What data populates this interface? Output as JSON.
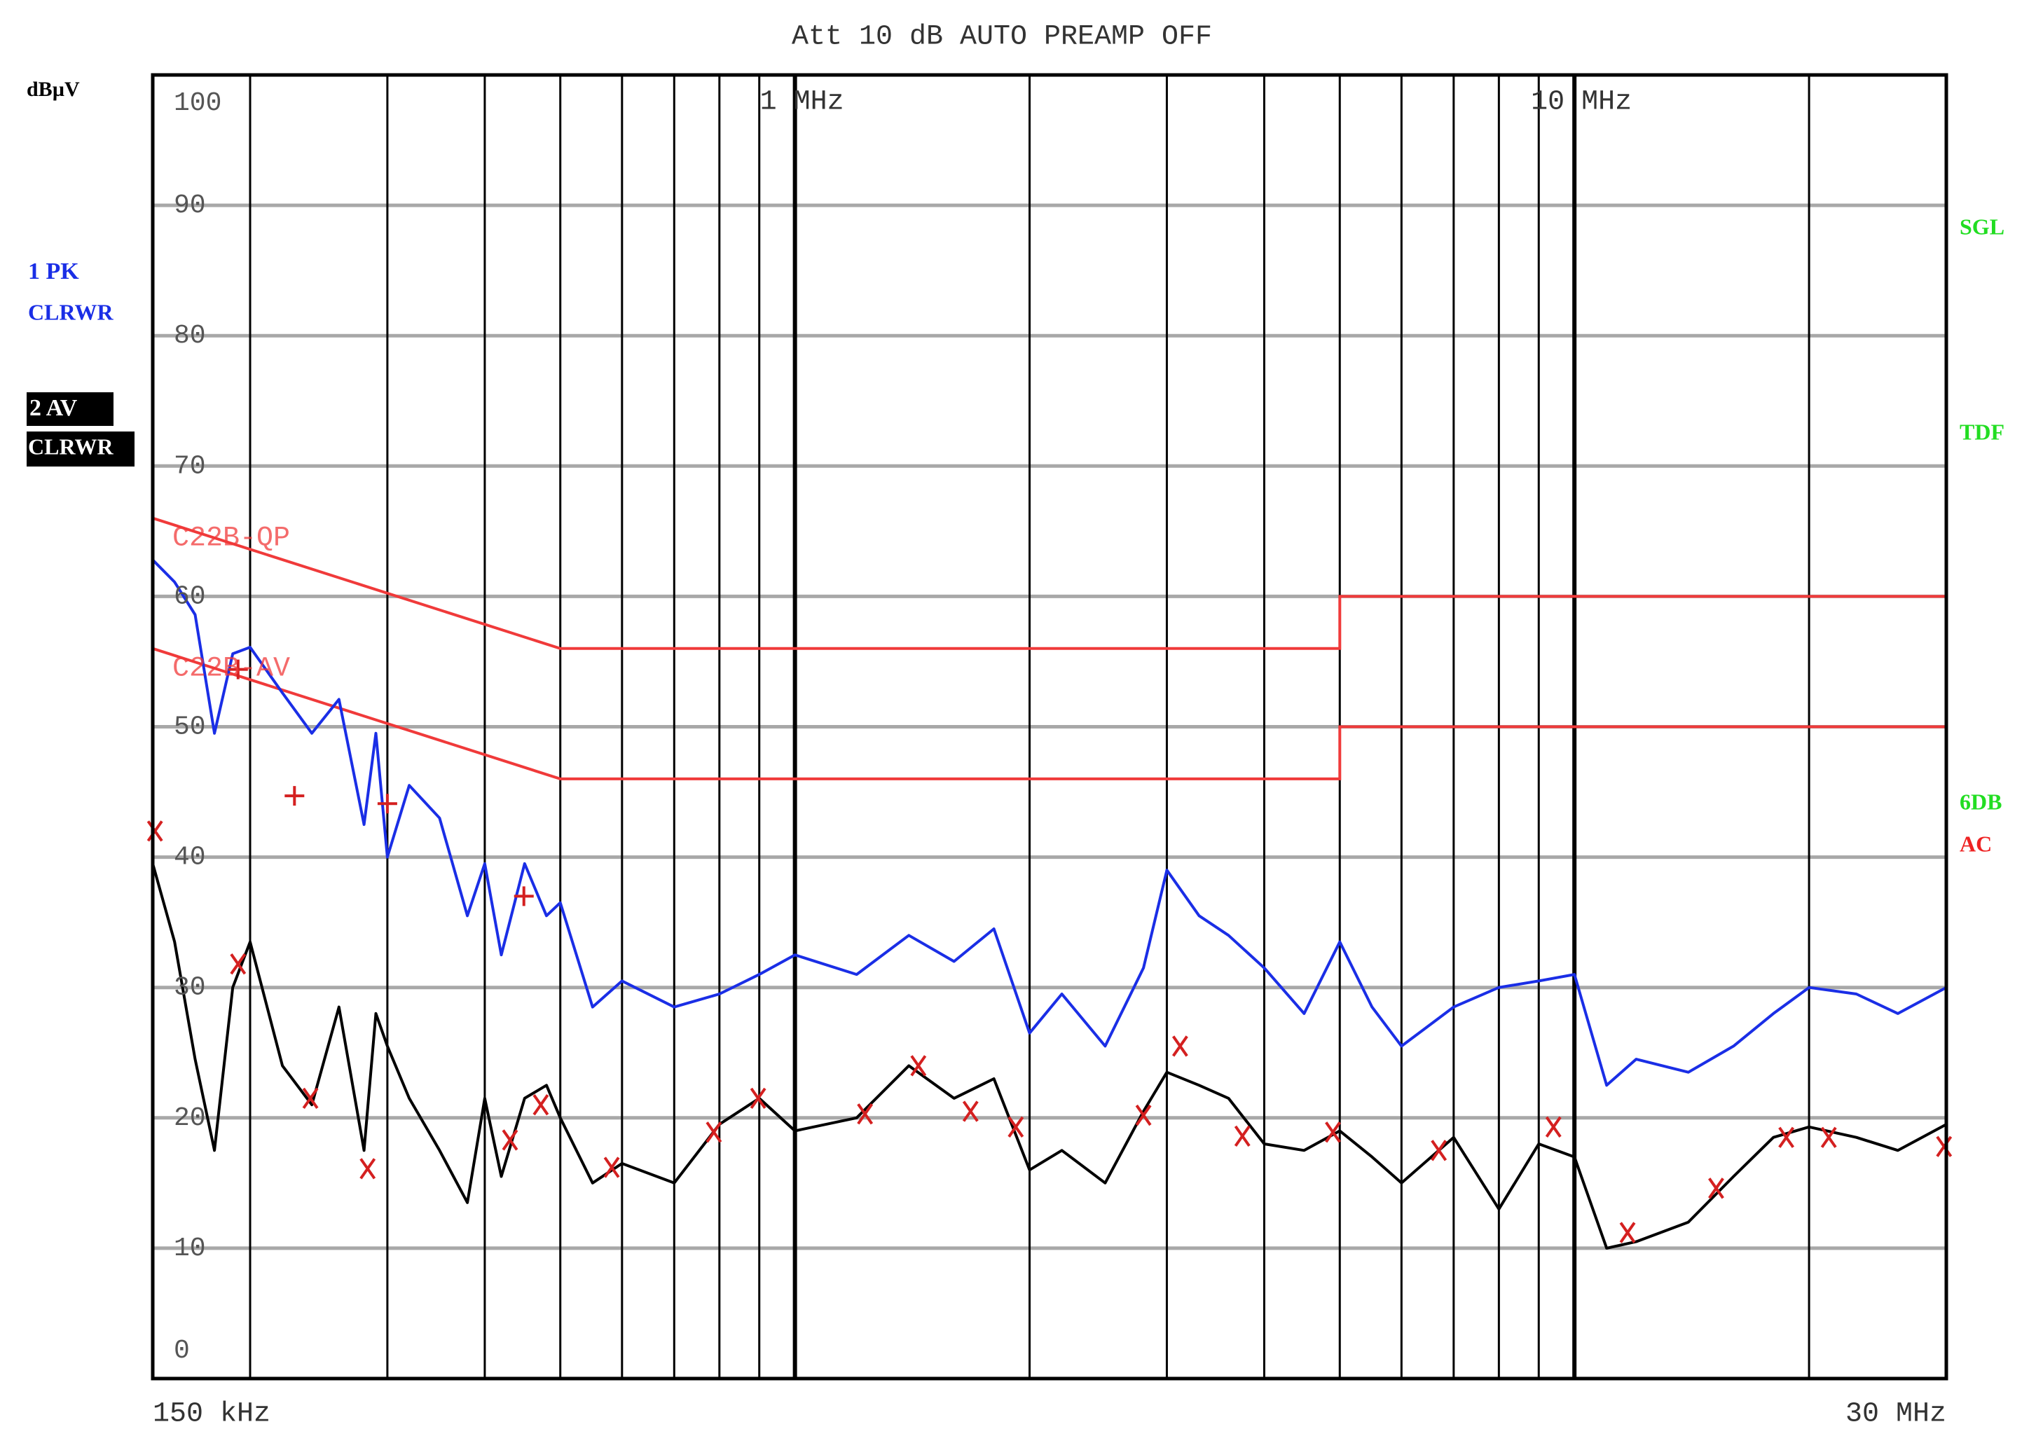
{
  "chart_data": {
    "type": "line",
    "title": "Att 10 dB AUTO  PREAMP OFF",
    "y_unit": "dBµV",
    "xscale": "log",
    "xlim": [
      0.15,
      30
    ],
    "ylim": [
      0,
      100
    ],
    "xticks": [
      {
        "value": 0.15,
        "label": "150 kHz"
      },
      {
        "value": 1,
        "label": "1 MHz"
      },
      {
        "value": 10,
        "label": "10 MHz"
      },
      {
        "value": 30,
        "label": "30 MHz"
      }
    ],
    "xgrid": [
      0.2,
      0.3,
      0.4,
      0.5,
      0.6,
      0.7,
      0.8,
      0.9,
      1,
      2,
      3,
      4,
      5,
      6,
      7,
      8,
      9,
      10,
      20
    ],
    "yticks": [
      0,
      10,
      20,
      30,
      40,
      50,
      60,
      70,
      80,
      90,
      100
    ],
    "grid": true,
    "x": [
      0.15,
      0.16,
      0.17,
      0.18,
      0.19,
      0.2,
      0.22,
      0.24,
      0.26,
      0.28,
      0.29,
      0.3,
      0.32,
      0.35,
      0.38,
      0.4,
      0.42,
      0.45,
      0.48,
      0.5,
      0.55,
      0.6,
      0.7,
      0.8,
      0.9,
      1,
      1.2,
      1.4,
      1.6,
      1.8,
      2,
      2.2,
      2.5,
      2.8,
      3,
      3.3,
      3.6,
      4,
      4.5,
      5,
      5.5,
      6,
      7,
      8,
      9,
      10,
      11,
      12,
      14,
      16,
      18,
      20,
      23,
      26,
      30
    ],
    "series": [
      {
        "name": "1 PK",
        "detector": "CLRWR",
        "color": "#1a2ee6",
        "values": [
          62.8,
          61.1,
          58.6,
          49.5,
          55.6,
          56.1,
          52.6,
          49.5,
          52.1,
          42.5,
          49.5,
          40.0,
          45.5,
          43.0,
          35.5,
          39.5,
          32.5,
          39.5,
          35.5,
          36.5,
          28.5,
          30.5,
          28.5,
          29.5,
          31.0,
          32.5,
          31.0,
          34.0,
          32.0,
          34.5,
          26.5,
          29.5,
          25.5,
          31.5,
          39.0,
          35.5,
          34.0,
          31.5,
          28.0,
          33.5,
          28.5,
          25.5,
          28.5,
          30.0,
          30.5,
          31.0,
          22.5,
          24.5,
          23.5,
          25.5,
          28.0,
          30.0,
          29.5,
          28.0,
          30.0
        ]
      },
      {
        "name": "2 AV",
        "detector": "CLRWR",
        "color": "#000000",
        "values": [
          39.5,
          33.5,
          24.5,
          17.5,
          30.0,
          33.5,
          24.0,
          21.0,
          28.5,
          17.5,
          28.0,
          25.5,
          21.5,
          17.5,
          13.5,
          21.5,
          15.5,
          21.5,
          22.5,
          20.0,
          15.0,
          16.5,
          15.0,
          19.5,
          21.5,
          19.0,
          20.0,
          24.0,
          21.5,
          23.0,
          16.0,
          17.5,
          15.0,
          20.5,
          23.5,
          22.5,
          21.5,
          18.0,
          17.5,
          19.0,
          17.0,
          15.0,
          18.5,
          13.0,
          18.0,
          17.0,
          10.0,
          10.5,
          12.0,
          15.5,
          18.5,
          19.3,
          18.5,
          17.5,
          19.5
        ]
      }
    ],
    "limit_lines": [
      {
        "name": "C22B-QP",
        "color": "#f03a3a",
        "x": [
          0.15,
          0.5,
          5,
          5,
          30
        ],
        "values": [
          66,
          56,
          56,
          60,
          60
        ]
      },
      {
        "name": "C22B-AV",
        "color": "#f03a3a",
        "x": [
          0.15,
          0.5,
          5,
          5,
          30
        ],
        "values": [
          56,
          46,
          46,
          50,
          50
        ]
      }
    ],
    "markers": [
      {
        "symbol": "+",
        "color": "#d42020",
        "x": [
          0.193,
          0.228,
          0.3,
          0.449
        ],
        "values": [
          54.4,
          44.7,
          44.1,
          37.0
        ]
      },
      {
        "symbol": "x",
        "color": "#d42020",
        "x": [
          0.151,
          0.193,
          0.239,
          0.283,
          0.431,
          0.472,
          0.582,
          0.787,
          0.897,
          1.23,
          1.44,
          1.68,
          1.92,
          2.8,
          3.12,
          3.75,
          4.9,
          6.7,
          9.4,
          11.7,
          15.2,
          18.7,
          21.2,
          29.8
        ],
        "values": [
          42.0,
          31.8,
          21.5,
          16.1,
          18.3,
          21.0,
          16.2,
          18.9,
          21.5,
          20.3,
          24.0,
          20.5,
          19.3,
          20.2,
          25.5,
          18.6,
          18.9,
          17.5,
          19.3,
          11.2,
          14.6,
          18.5,
          18.5,
          17.8
        ]
      }
    ],
    "status_labels": [
      {
        "text": "SGL",
        "color": "#22dd22"
      },
      {
        "text": "TDF",
        "color": "#22dd22"
      },
      {
        "text": "6DB",
        "color": "#22dd22"
      },
      {
        "text": "AC",
        "color": "#ee2222"
      }
    ]
  }
}
